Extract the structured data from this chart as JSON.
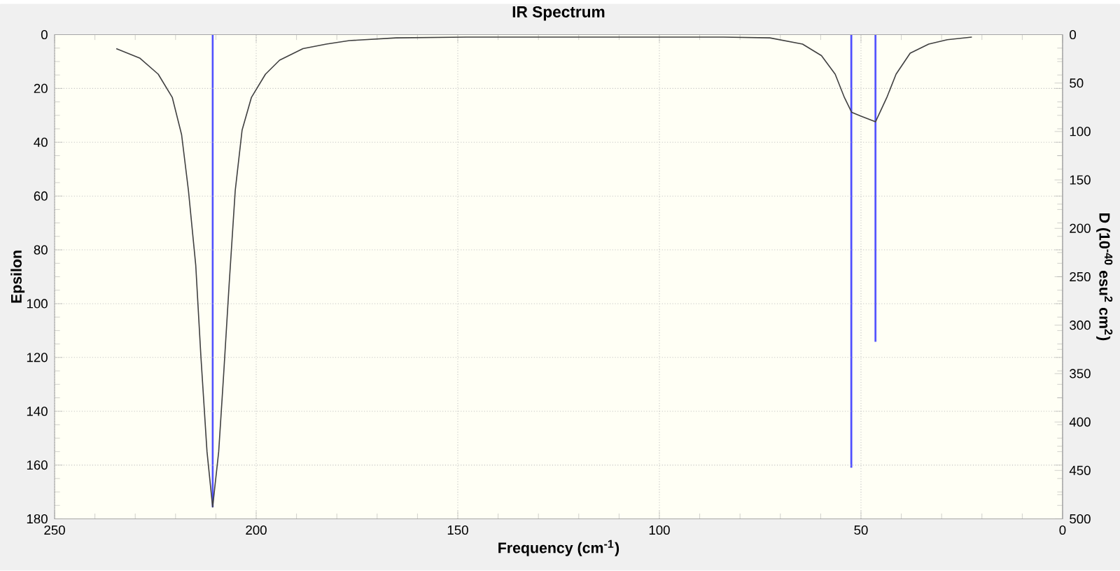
{
  "chart_data": {
    "type": "line",
    "title": "IR Spectrum",
    "xlabel": "Frequency (cm$^{-1}$)",
    "ylabel": "Epsilon",
    "y2label": "D (10$^{-40}$ esu$^{2}$ cm$^{2}$)",
    "xlim": [
      250,
      0
    ],
    "xticks": [
      250,
      200,
      150,
      100,
      50,
      0
    ],
    "ylim": [
      180,
      0
    ],
    "yticks": [
      0,
      20,
      40,
      60,
      80,
      100,
      120,
      140,
      160,
      180
    ],
    "y2lim": [
      500,
      0
    ],
    "y2ticks": [
      0,
      50,
      100,
      150,
      200,
      250,
      300,
      350,
      400,
      450,
      500
    ],
    "grid": true,
    "series": [
      {
        "color": "#404040",
        "x": [
          234.7,
          228.9,
          224.3,
          220.8,
          218.5,
          216.8,
          215.0,
          213.7,
          212.2,
          210.8,
          209.3,
          208.1,
          206.7,
          205.2,
          203.5,
          201.2,
          197.7,
          194.2,
          188.4,
          182.6,
          176.9,
          165.3,
          147.9,
          84.1,
          72.6,
          64.5,
          59.8,
          56.4,
          54.1,
          52.3,
          50.0,
          46.4,
          43.6,
          41.3,
          37.8,
          33.2,
          28.6,
          22.5
        ],
        "values": [
          5.2,
          8.7,
          14.7,
          23.4,
          37.2,
          58,
          85.6,
          120,
          155,
          175.6,
          155,
          127,
          92.6,
          58,
          35.5,
          23.4,
          14.7,
          9.5,
          5.2,
          3.5,
          2.2,
          1.2,
          0.9,
          0.9,
          1.2,
          3.5,
          7.8,
          14.7,
          23.4,
          28.9,
          30.3,
          32.4,
          23.4,
          14.7,
          6.9,
          3.5,
          1.9,
          0.9
        ]
      },
      {
        "type": "bar",
        "axis": "y2",
        "color": "#5050ff",
        "x": [
          210.8,
          52.4,
          46.4
        ],
        "values": [
          488,
          447,
          317
        ]
      }
    ]
  }
}
